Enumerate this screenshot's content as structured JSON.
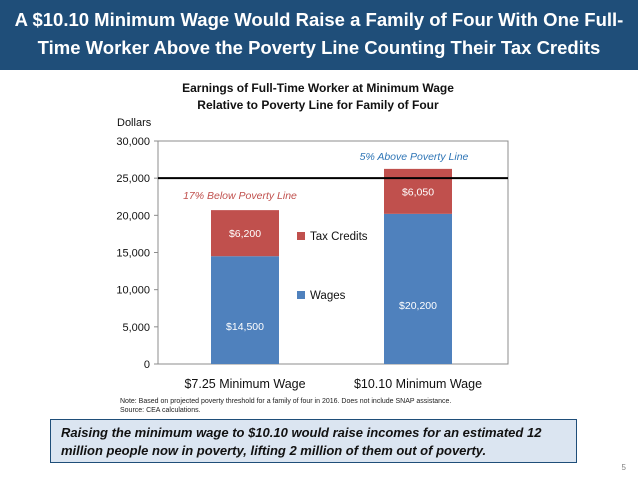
{
  "slide": {
    "title": "A $10.10 Minimum Wage Would Raise a Family of Four With One Full-Time Worker Above the Poverty Line Counting Their Tax Credits",
    "note_line1": "Note: Based on projected poverty threshold for a family of four in 2016. Does not include SNAP assistance.",
    "note_line2": "Source: CEA calculations.",
    "callout": "Raising the minimum wage to $10.10 would raise incomes for an estimated 12 million people now in poverty, lifting 2 million of them out of poverty.",
    "page_number": "5"
  },
  "colors": {
    "title_bg": "#1f4e79",
    "wages": "#4f81bd",
    "tax_credits": "#c0504d",
    "annotation_red": "#c0504d",
    "annotation_blue": "#2e75b6"
  },
  "chart_data": {
    "type": "bar",
    "stacked": true,
    "title_line1": "Earnings of Full-Time Worker at Minimum Wage",
    "title_line2": "Relative to Poverty Line for Family of Four",
    "ylabel": "Dollars",
    "ylim": [
      0,
      30000
    ],
    "yticks": [
      0,
      5000,
      10000,
      15000,
      20000,
      25000,
      30000
    ],
    "ytick_labels": [
      "0",
      "5,000",
      "10,000",
      "15,000",
      "20,000",
      "25,000",
      "30,000"
    ],
    "categories": [
      "$7.25 Minimum Wage",
      "$10.10 Minimum Wage"
    ],
    "series": [
      {
        "name": "Wages",
        "values": [
          14500,
          20200
        ],
        "labels": [
          "$14,500",
          "$20,200"
        ]
      },
      {
        "name": "Tax Credits",
        "values": [
          6200,
          6050
        ],
        "labels": [
          "$6,200",
          "$6,050"
        ]
      }
    ],
    "poverty_line": 25000,
    "annotations": [
      "17% Below Poverty Line",
      "5% Above Poverty Line"
    ],
    "legend_position": "center"
  }
}
